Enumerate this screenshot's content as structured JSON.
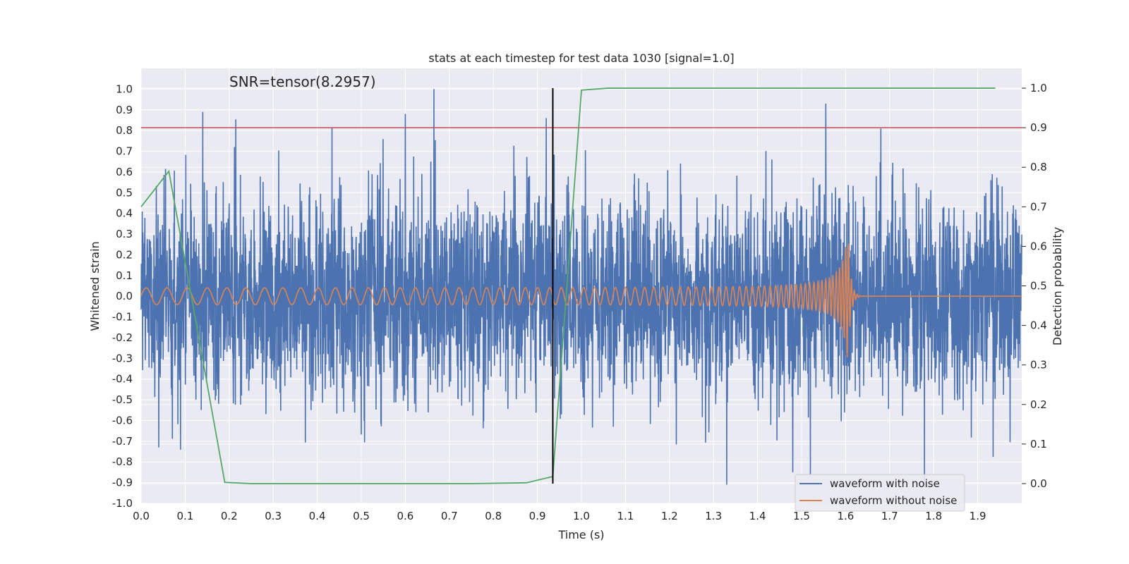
{
  "chart_data": {
    "type": "line",
    "title": "stats at each timestep for test data 1030 [signal=1.0]",
    "xlabel": "Time (s)",
    "ylabel": "Whitened strain",
    "ylabel_right": "Detection probability",
    "annotation": "SNR=tensor(8.2957)",
    "xlim": [
      0.0,
      2.0
    ],
    "ylim": [
      -1.0,
      1.1
    ],
    "ylim_right": [
      -0.05,
      1.05
    ],
    "x_ticks": [
      "0.0",
      "0.1",
      "0.2",
      "0.3",
      "0.4",
      "0.5",
      "0.6",
      "0.7",
      "0.8",
      "0.9",
      "1.0",
      "1.1",
      "1.2",
      "1.3",
      "1.4",
      "1.5",
      "1.6",
      "1.7",
      "1.8",
      "1.9"
    ],
    "y_ticks": [
      "-1.0",
      "-0.9",
      "-0.8",
      "-0.7",
      "-0.6",
      "-0.5",
      "-0.4",
      "-0.3",
      "-0.2",
      "-0.1",
      "0.0",
      "0.1",
      "0.2",
      "0.3",
      "0.4",
      "0.5",
      "0.6",
      "0.7",
      "0.8",
      "0.9",
      "1.0"
    ],
    "y_ticks_right": [
      "0.0",
      "0.1",
      "0.2",
      "0.3",
      "0.4",
      "0.5",
      "0.6",
      "0.7",
      "0.8",
      "0.9",
      "1.0"
    ],
    "colors": {
      "noise": "#4c72b0",
      "clean": "#dd8452",
      "probability": "#55a868",
      "threshold": "#c44e52",
      "marker": "#000000",
      "background": "#eaeaf2",
      "grid": "#ffffff"
    },
    "legend": {
      "placement": "lower-right",
      "entries": [
        "waveform with noise",
        "waveform without noise"
      ]
    },
    "series": [
      {
        "name": "waveform with noise",
        "axis": "left",
        "description": "dense random noise, std approx 0.27, range -0.91 to 1.0",
        "peaks": [
          {
            "x": 0.14,
            "y": 0.89
          },
          {
            "x": 0.6,
            "y": 0.88
          },
          {
            "x": 0.665,
            "y": 1.0
          },
          {
            "x": 0.92,
            "y": 0.86
          },
          {
            "x": 1.555,
            "y": 0.93
          },
          {
            "x": 1.68,
            "y": 0.81
          },
          {
            "x": 0.04,
            "y": -0.73
          },
          {
            "x": 1.33,
            "y": -0.91
          },
          {
            "x": 1.48,
            "y": -0.85
          },
          {
            "x": 1.52,
            "y": -0.86
          }
        ]
      },
      {
        "name": "waveform without noise",
        "axis": "left",
        "description": "chirp, amplitude 0.04 rising to 0.33 at merger near 1.605 s, ringdown to 0 by 1.64 s",
        "merger_time": 1.605,
        "amplitude_start": 0.04,
        "amplitude_peak": 0.33
      },
      {
        "name": "detection probability",
        "axis": "right",
        "x": [
          0.0,
          0.063,
          0.19,
          0.25,
          0.5,
          0.75,
          0.875,
          0.935,
          1.0,
          1.06,
          1.25,
          1.5,
          1.75,
          1.94
        ],
        "y": [
          0.7,
          0.79,
          0.003,
          0.0,
          0.0,
          0.0,
          0.002,
          0.018,
          0.995,
          1.0,
          1.0,
          1.0,
          1.0,
          1.0
        ]
      }
    ],
    "threshold": {
      "axis": "right",
      "value": 0.9
    },
    "marker_line": {
      "x": 0.935,
      "y_from": 0.0,
      "y_to": 1.0,
      "axis": "right"
    }
  }
}
